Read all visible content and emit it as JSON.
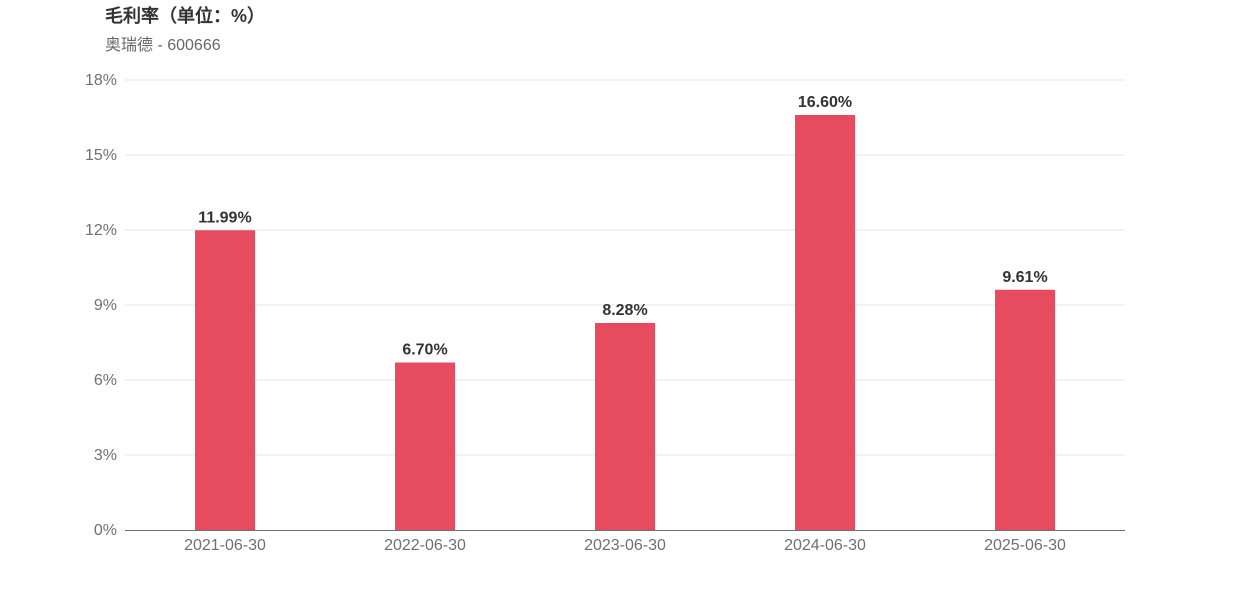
{
  "chart": {
    "title": "毛利率（单位：%）",
    "subtitle": "奥瑞德 - 600666"
  },
  "colors": {
    "bar": "#e64b5f",
    "grid": "#e0e6f1",
    "axis": "#6e7079"
  },
  "chart_data": {
    "type": "bar",
    "title": "毛利率（单位：%）",
    "subtitle": "奥瑞德 - 600666",
    "categories": [
      "2021-06-30",
      "2022-06-30",
      "2023-06-30",
      "2024-06-30",
      "2025-06-30"
    ],
    "values": [
      11.99,
      6.7,
      8.28,
      16.6,
      9.61
    ],
    "data_labels": [
      "11.99%",
      "6.70%",
      "8.28%",
      "16.60%",
      "9.61%"
    ],
    "ylim": [
      0,
      18
    ],
    "yticks": [
      0,
      3,
      6,
      9,
      12,
      15,
      18
    ],
    "ytick_labels": [
      "0%",
      "3%",
      "6%",
      "9%",
      "12%",
      "15%",
      "18%"
    ],
    "xlabel": "",
    "ylabel": "",
    "grid": true,
    "legend": "none"
  }
}
